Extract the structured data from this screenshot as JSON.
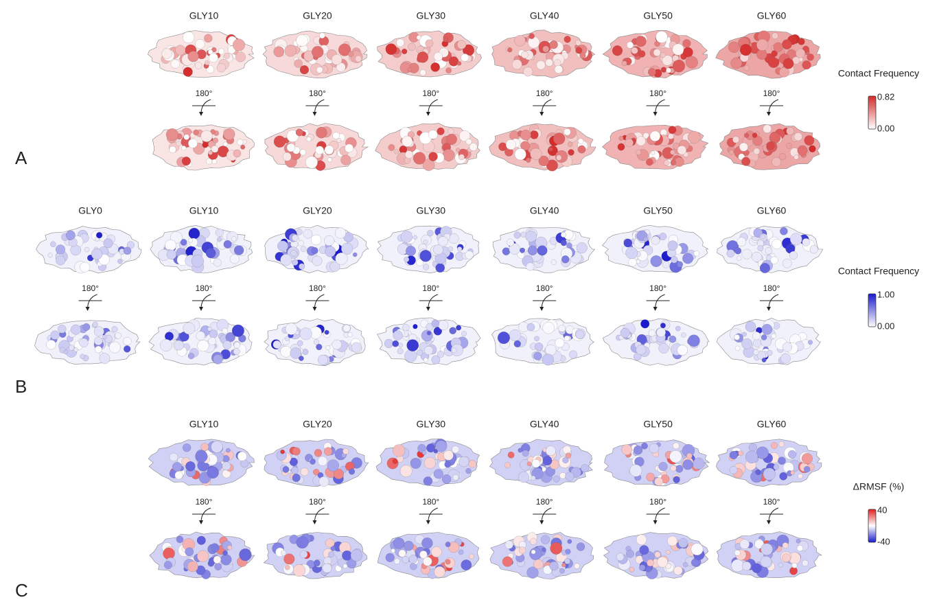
{
  "panels": [
    {
      "label": "A",
      "columns": [
        "GLY10",
        "GLY20",
        "GLY30",
        "GLY40",
        "GLY50",
        "GLY60"
      ],
      "rotation": "180°",
      "legend": {
        "title": "Contact Frequency",
        "max": "0.82",
        "min": "0.00",
        "colors": [
          "#ffffff",
          "#d42a2a"
        ]
      }
    },
    {
      "label": "B",
      "columns": [
        "GLY0",
        "GLY10",
        "GLY20",
        "GLY30",
        "GLY40",
        "GLY50",
        "GLY60"
      ],
      "rotation": "180°",
      "legend": {
        "title": "Contact Frequency",
        "max": "1.00",
        "min": "0.00",
        "colors": [
          "#ffffff",
          "#1a1acc"
        ]
      }
    },
    {
      "label": "C",
      "columns": [
        "GLY10",
        "GLY20",
        "GLY30",
        "GLY40",
        "GLY50",
        "GLY60"
      ],
      "rotation": "180°",
      "legend": {
        "title": "ΔRMSF (%)",
        "max": "40",
        "min": "-40",
        "colors": [
          "#1a1acc",
          "#ffffff",
          "#e02020"
        ]
      }
    }
  ]
}
